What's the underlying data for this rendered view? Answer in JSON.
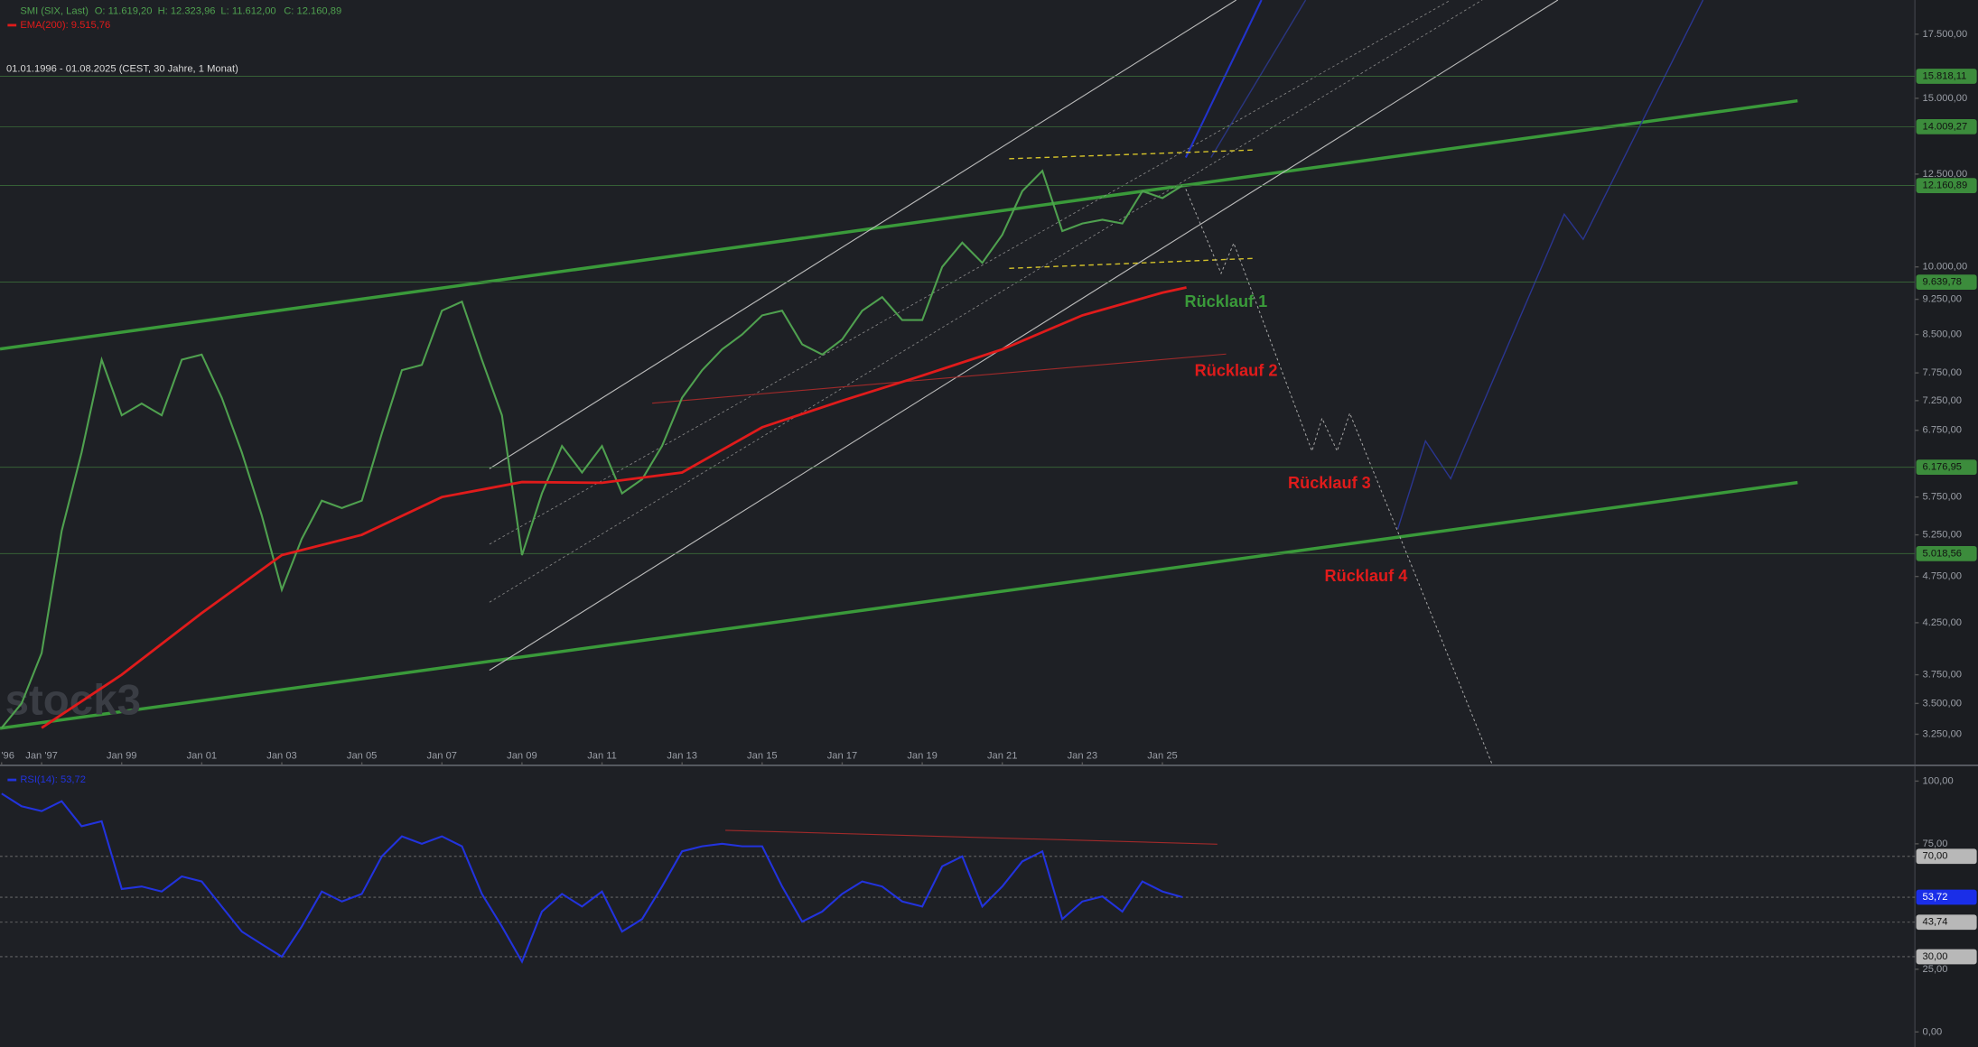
{
  "chart_data": [
    {
      "type": "line",
      "log_scale": true,
      "title": "SMI (SIX, Last)",
      "ohlc": [
        "O: 11.619,20",
        "H: 12.323,96",
        "L: 11.612,00",
        "C: 12.160,89"
      ],
      "subtitle": "01.01.1996 - 01.08.2025  (CEST, 30 Jahre, 1 Monat)",
      "watermark": "stock3",
      "x": [
        1996,
        1996.5,
        1997,
        1997.5,
        1998,
        1998.5,
        1999,
        1999.5,
        2000,
        2000.5,
        2001,
        2001.5,
        2002,
        2002.5,
        2003,
        2003.5,
        2004,
        2004.5,
        2005,
        2005.5,
        2006,
        2006.5,
        2007,
        2007.5,
        2008,
        2008.5,
        2009,
        2009.5,
        2010,
        2010.5,
        2011,
        2011.5,
        2012,
        2012.5,
        2013,
        2013.5,
        2014,
        2014.5,
        2015,
        2015.5,
        2016,
        2016.5,
        2017,
        2017.5,
        2018,
        2018.5,
        2019,
        2019.5,
        2020,
        2020.5,
        2021,
        2021.5,
        2022,
        2022.5,
        2023,
        2023.5,
        2024,
        2024.5,
        2025,
        2025.5
      ],
      "series": [
        {
          "name": "SMI (SIX, Last)",
          "color": "#4fa04f",
          "values": [
            3300,
            3500,
            3950,
            5300,
            6400,
            8000,
            7000,
            7200,
            7000,
            8000,
            8100,
            7300,
            6400,
            5500,
            4600,
            5200,
            5700,
            5600,
            5700,
            6700,
            7800,
            7900,
            9000,
            9200,
            8000,
            7000,
            5000,
            5800,
            6500,
            6100,
            6500,
            5800,
            6000,
            6500,
            7300,
            7800,
            8200,
            8500,
            8900,
            9000,
            8300,
            8100,
            8400,
            9000,
            9300,
            8800,
            8800,
            10000,
            10600,
            10100,
            10800,
            12000,
            12600,
            10900,
            11100,
            11200,
            11100,
            12000,
            11800,
            12160.89
          ]
        },
        {
          "name": "EMA(200): 9.515,76",
          "color": "#e01b1b",
          "x": [
            1997,
            1999,
            2001,
            2003,
            2005,
            2007,
            2009,
            2011,
            2013,
            2015,
            2017,
            2019,
            2021,
            2023,
            2025,
            2025.6
          ],
          "values": [
            3300,
            3750,
            4350,
            5000,
            5250,
            5750,
            5960,
            5950,
            6100,
            6800,
            7250,
            7700,
            8200,
            8900,
            9400,
            9515.76
          ]
        }
      ],
      "xlim": [
        1995.96,
        2043.8
      ],
      "xticks": [
        {
          "value": 1996,
          "label": "'96"
        },
        {
          "value": 1997,
          "label": "Jan '97"
        },
        {
          "value": 1999,
          "label": "Jan 99"
        },
        {
          "value": 2001,
          "label": "Jan 01"
        },
        {
          "value": 2003,
          "label": "Jan 03"
        },
        {
          "value": 2005,
          "label": "Jan 05"
        },
        {
          "value": 2007,
          "label": "Jan 07"
        },
        {
          "value": 2009,
          "label": "Jan 09"
        },
        {
          "value": 2011,
          "label": "Jan 11"
        },
        {
          "value": 2013,
          "label": "Jan 13"
        },
        {
          "value": 2015,
          "label": "Jan 15"
        },
        {
          "value": 2017,
          "label": "Jan 17"
        },
        {
          "value": 2019,
          "label": "Jan 19"
        },
        {
          "value": 2021,
          "label": "Jan 21"
        },
        {
          "value": 2023,
          "label": "Jan 23"
        },
        {
          "value": 2025,
          "label": "Jan 25"
        }
      ],
      "ylim": [
        3020,
        19000
      ],
      "yticks": [
        {
          "value": 3250,
          "label": "3.250,00"
        },
        {
          "value": 3500,
          "label": "3.500,00"
        },
        {
          "value": 3750,
          "label": "3.750,00"
        },
        {
          "value": 4250,
          "label": "4.250,00"
        },
        {
          "value": 4750,
          "label": "4.750,00"
        },
        {
          "value": 5250,
          "label": "5.250,00"
        },
        {
          "value": 5750,
          "label": "5.750,00"
        },
        {
          "value": 6750,
          "label": "6.750,00"
        },
        {
          "value": 7250,
          "label": "7.250,00"
        },
        {
          "value": 7750,
          "label": "7.750,00"
        },
        {
          "value": 8500,
          "label": "8.500,00"
        },
        {
          "value": 9250,
          "label": "9.250,00"
        },
        {
          "value": 10000,
          "label": "10.000,00"
        },
        {
          "value": 12500,
          "label": "12.500,00"
        },
        {
          "value": 15000,
          "label": "15.000,00"
        },
        {
          "value": 17500,
          "label": "17.500,00"
        }
      ],
      "levels": [
        {
          "value": 15818.11,
          "label": "15.818,11"
        },
        {
          "value": 14009.27,
          "label": "14.009,27"
        },
        {
          "value": 12160.89,
          "label": "12.160,89"
        },
        {
          "value": 9639.78,
          "label": "9.639,78"
        },
        {
          "value": 6176.95,
          "label": "6.176,95"
        },
        {
          "value": 5018.56,
          "label": "5.018,56"
        }
      ],
      "annotations": [
        {
          "text": "Rücklauf 1",
          "color": "#3a9a3a"
        },
        {
          "text": "Rücklauf 2",
          "color": "#e01b1b"
        },
        {
          "text": "Rücklauf 3",
          "color": "#e01b1b"
        },
        {
          "text": "Rücklauf 4",
          "color": "#e01b1b"
        }
      ]
    },
    {
      "type": "line",
      "x": [
        1996,
        1996.5,
        1997,
        1997.5,
        1998,
        1998.5,
        1999,
        1999.5,
        2000,
        2000.5,
        2001,
        2001.5,
        2002,
        2002.5,
        2003,
        2003.5,
        2004,
        2004.5,
        2005,
        2005.5,
        2006,
        2006.5,
        2007,
        2007.5,
        2008,
        2008.5,
        2009,
        2009.5,
        2010,
        2010.5,
        2011,
        2011.5,
        2012,
        2012.5,
        2013,
        2013.5,
        2014,
        2014.5,
        2015,
        2015.5,
        2016,
        2016.5,
        2017,
        2017.5,
        2018,
        2018.5,
        2019,
        2019.5,
        2020,
        2020.5,
        2021,
        2021.5,
        2022,
        2022.5,
        2023,
        2023.5,
        2024,
        2024.5,
        2025,
        2025.5
      ],
      "series": [
        {
          "name": "RSI(14): 53,72",
          "color": "#2233dd",
          "values": [
            95,
            90,
            88,
            92,
            82,
            84,
            57,
            58,
            56,
            62,
            60,
            50,
            40,
            35,
            30,
            42,
            56,
            52,
            55,
            70,
            78,
            75,
            78,
            74,
            55,
            42,
            28,
            48,
            55,
            50,
            56,
            40,
            45,
            58,
            72,
            74,
            75,
            74,
            74,
            58,
            44,
            48,
            55,
            60,
            58,
            52,
            50,
            66,
            70,
            50,
            58,
            68,
            72,
            45,
            52,
            54,
            48,
            60,
            56,
            53.72
          ]
        }
      ],
      "xlim": [
        1995.96,
        2043.8
      ],
      "ylim": [
        -6,
        105
      ],
      "yticks": [
        {
          "value": 0,
          "label": "0,00"
        },
        {
          "value": 25,
          "label": "25,00"
        },
        {
          "value": 75,
          "label": "75,00"
        },
        {
          "value": 100,
          "label": "100,00"
        }
      ],
      "levels": [
        {
          "value": 70,
          "label": "70,00"
        },
        {
          "value": 53.72,
          "label": "53,72"
        },
        {
          "value": 43.74,
          "label": "43,74"
        },
        {
          "value": 30,
          "label": "30,00"
        }
      ]
    }
  ]
}
